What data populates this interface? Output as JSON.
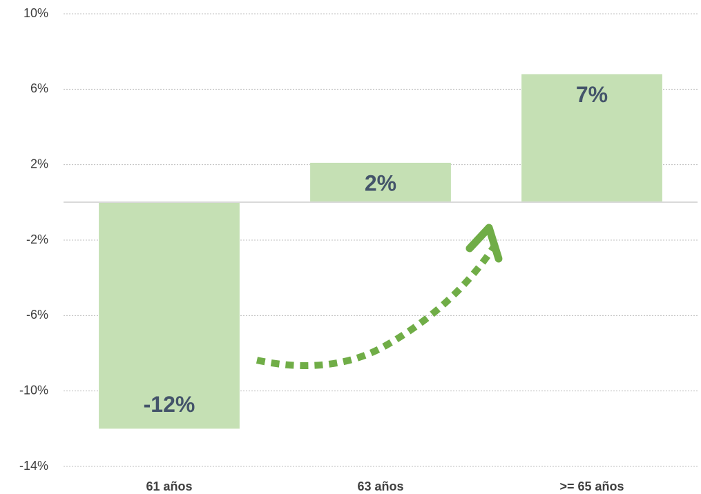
{
  "chart_data": {
    "type": "bar",
    "categories": [
      "61 años",
      "63 años",
      ">= 65 años"
    ],
    "values": [
      -12,
      2.1,
      6.8
    ],
    "value_labels": [
      "-12%",
      "2%",
      "7%"
    ],
    "color": "#c5e0b4",
    "ylim": [
      -14,
      10
    ],
    "yticks": [
      {
        "value": -14,
        "label": "-14%"
      },
      {
        "value": -10,
        "label": "-10%"
      },
      {
        "value": -6,
        "label": "-6%"
      },
      {
        "value": -2,
        "label": "-2%"
      },
      {
        "value": 2,
        "label": "2%"
      },
      {
        "value": 6,
        "label": "6%"
      },
      {
        "value": 10,
        "label": "10%"
      }
    ],
    "grid": true
  }
}
